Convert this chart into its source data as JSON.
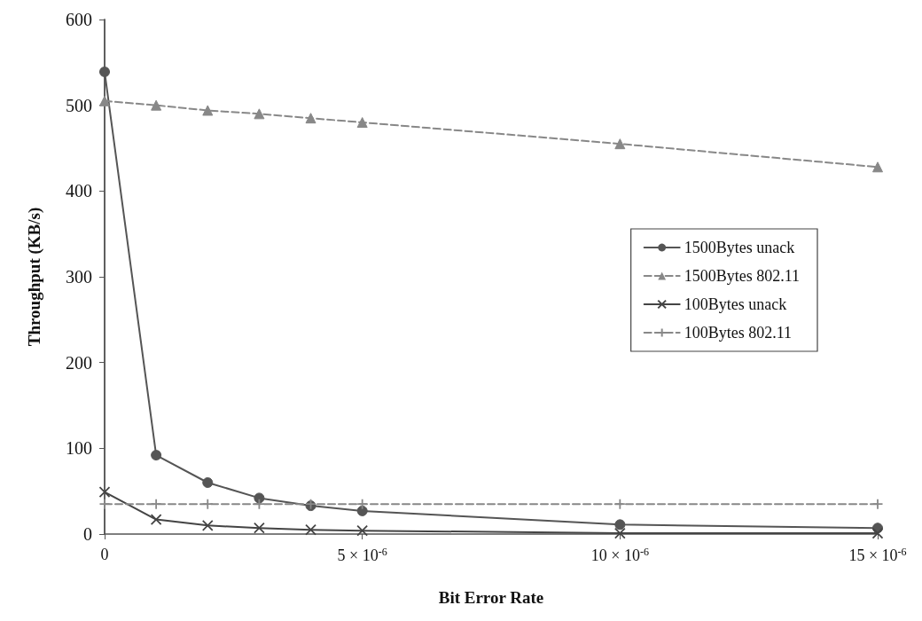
{
  "chart_data": {
    "type": "line",
    "xlabel": "Bit Error Rate",
    "ylabel": "Throughput (KB/s)",
    "x": [
      0,
      1e-06,
      2e-06,
      3e-06,
      4e-06,
      5e-06,
      1e-05,
      1.5e-05
    ],
    "series": [
      {
        "name": "1500Bytes unack",
        "color": "#555555",
        "marker": "circle",
        "line_style": "solid",
        "values": [
          539,
          92,
          60,
          42,
          33,
          27,
          11,
          7
        ]
      },
      {
        "name": "1500Bytes 802.11",
        "color": "#888888",
        "marker": "triangle",
        "line_style": "dashed",
        "values": [
          505,
          500,
          494,
          490,
          485,
          480,
          455,
          428
        ]
      },
      {
        "name": "100Bytes unack",
        "color": "#444444",
        "marker": "cross",
        "line_style": "solid",
        "values": [
          49,
          17,
          10,
          7,
          5,
          4,
          1,
          1
        ]
      },
      {
        "name": "100Bytes 802.11",
        "color": "#888888",
        "marker": "plus",
        "line_style": "dashed",
        "values": [
          35,
          35,
          35,
          35,
          35,
          35,
          35,
          35
        ]
      }
    ],
    "xlim": [
      0,
      1.5e-05
    ],
    "xticks": [
      0,
      {
        "value": 5e-06,
        "label": "5 × 10$^{-6}$"
      },
      {
        "value": 1e-05,
        "label": "10 × 10$^{-6}$"
      },
      {
        "value": 1.5e-05,
        "label": "15 × 10$^{-6}$"
      }
    ],
    "ylim": [
      0,
      600
    ],
    "yticks": [
      0,
      100,
      200,
      300,
      400,
      500,
      600
    ],
    "grid": false,
    "legend": "right"
  }
}
